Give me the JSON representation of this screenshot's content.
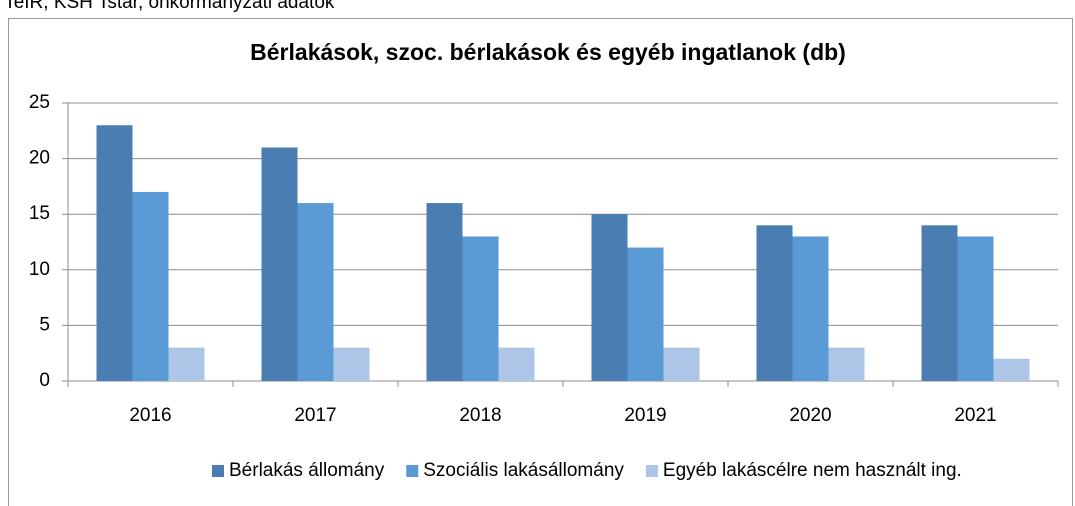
{
  "source": ": TeIR, KSH Tstar, önkormányzati adatok",
  "chart_data": {
    "type": "bar",
    "title": "Bérlakások, szoc. bérlakások és egyéb ingatlanok (db)",
    "categories": [
      "2016",
      "2017",
      "2018",
      "2019",
      "2020",
      "2021"
    ],
    "series": [
      {
        "name": "Bérlakás állomány",
        "color": "#4a7eb3",
        "values": [
          23,
          21,
          16,
          15,
          14,
          14
        ]
      },
      {
        "name": "Szociális lakásállomány",
        "color": "#5b9bd5",
        "values": [
          17,
          16,
          13,
          12,
          13,
          13
        ]
      },
      {
        "name": "Egyéb lakáscélre nem használt ing.",
        "color": "#adc5e6",
        "values": [
          3,
          3,
          3,
          3,
          3,
          2
        ]
      }
    ],
    "ylim": [
      0,
      25
    ],
    "yticks": [
      0,
      5,
      10,
      15,
      20,
      25
    ],
    "grid": true,
    "legend": "bottom"
  }
}
